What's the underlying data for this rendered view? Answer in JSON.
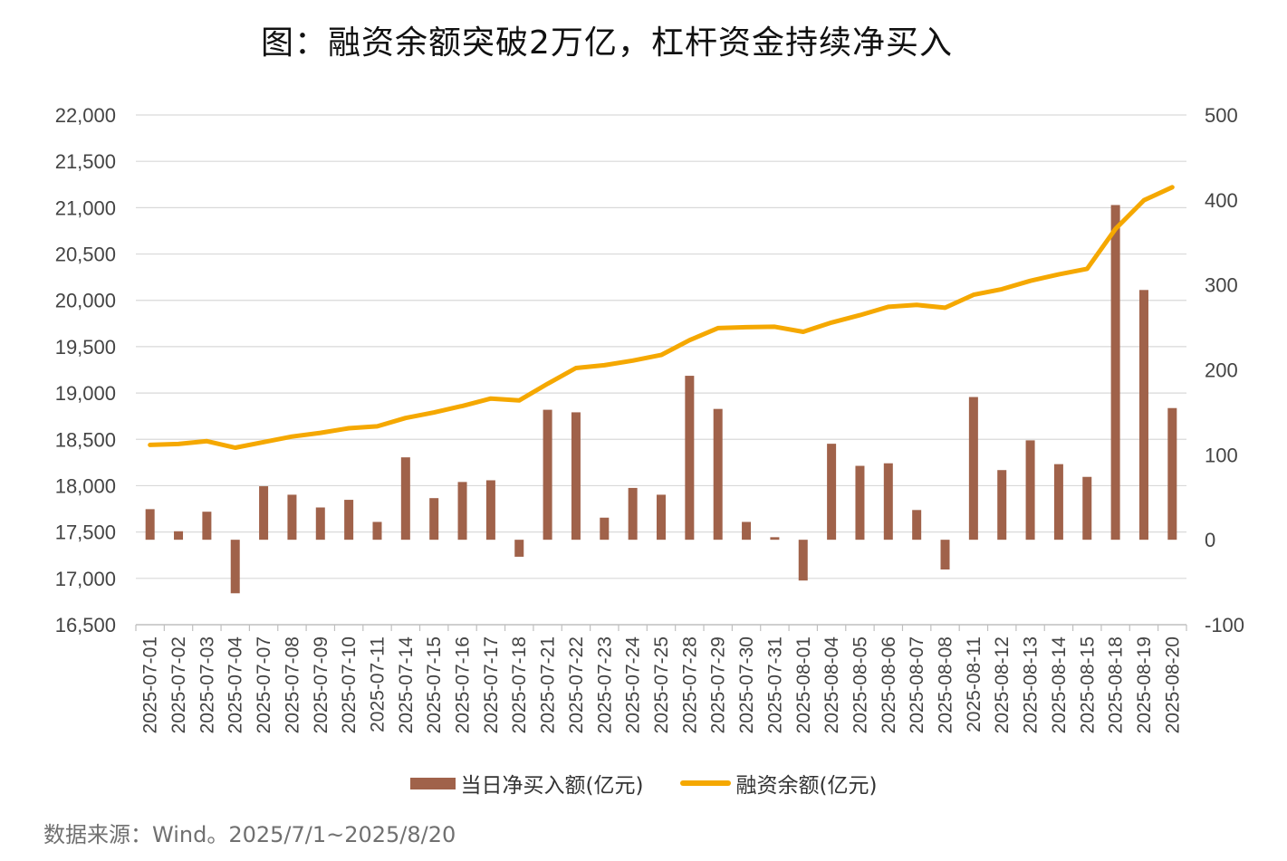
{
  "page": {
    "title": "图：融资余额突破2万亿，杠杆资金持续净买入",
    "source_note": "数据来源：Wind。2025/7/1~2025/8/20"
  },
  "legend": {
    "bar_label": "当日净买入额(亿元)",
    "line_label": "融资余额(亿元)"
  },
  "colors": {
    "bar": "#A0624A",
    "line": "#F5A800",
    "grid": "#D9D9D9",
    "axis": "#BFBFBF"
  },
  "chart_data": {
    "type": "bar+line",
    "title": "图：融资余额突破2万亿，杠杆资金持续净买入",
    "categories": [
      "2025-07-01",
      "2025-07-02",
      "2025-07-03",
      "2025-07-04",
      "2025-07-07",
      "2025-07-08",
      "2025-07-09",
      "2025-07-10",
      "2025-07-11",
      "2025-07-14",
      "2025-07-15",
      "2025-07-16",
      "2025-07-17",
      "2025-07-18",
      "2025-07-21",
      "2025-07-22",
      "2025-07-23",
      "2025-07-24",
      "2025-07-25",
      "2025-07-28",
      "2025-07-29",
      "2025-07-30",
      "2025-07-31",
      "2025-08-01",
      "2025-08-04",
      "2025-08-05",
      "2025-08-06",
      "2025-08-07",
      "2025-08-08",
      "2025-08-11",
      "2025-08-12",
      "2025-08-13",
      "2025-08-14",
      "2025-08-15",
      "2025-08-18",
      "2025-08-19",
      "2025-08-20"
    ],
    "series": [
      {
        "name": "当日净买入额(亿元)",
        "type": "bar",
        "axis": "right",
        "values": [
          36,
          10,
          33,
          -63,
          63,
          53,
          38,
          47,
          21,
          97,
          49,
          68,
          70,
          -20,
          153,
          150,
          26,
          61,
          53,
          193,
          154,
          21,
          3,
          -48,
          113,
          87,
          90,
          35,
          -35,
          168,
          82,
          117,
          89,
          74,
          394,
          294,
          155
        ]
      },
      {
        "name": "融资余额(亿元)",
        "type": "line",
        "axis": "left",
        "values": [
          18440,
          18450,
          18480,
          18410,
          18470,
          18530,
          18570,
          18620,
          18640,
          18730,
          18790,
          18860,
          18940,
          18920,
          19100,
          19270,
          19300,
          19350,
          19410,
          19570,
          19700,
          19710,
          19715,
          19660,
          19760,
          19840,
          19930,
          19950,
          19920,
          20060,
          20120,
          20210,
          20280,
          20340,
          20770,
          21080,
          21220
        ]
      }
    ],
    "y_left": {
      "min": 16500,
      "max": 22000,
      "step": 500,
      "ticks": [
        "16,500",
        "17,000",
        "17,500",
        "18,000",
        "18,500",
        "19,000",
        "19,500",
        "20,000",
        "20,500",
        "21,000",
        "21,500",
        "22,000"
      ]
    },
    "y_right": {
      "min": -100,
      "max": 500,
      "step": 100,
      "ticks": [
        "-100",
        "0",
        "100",
        "200",
        "300",
        "400",
        "500"
      ]
    },
    "grid": true,
    "legend_position": "bottom"
  }
}
